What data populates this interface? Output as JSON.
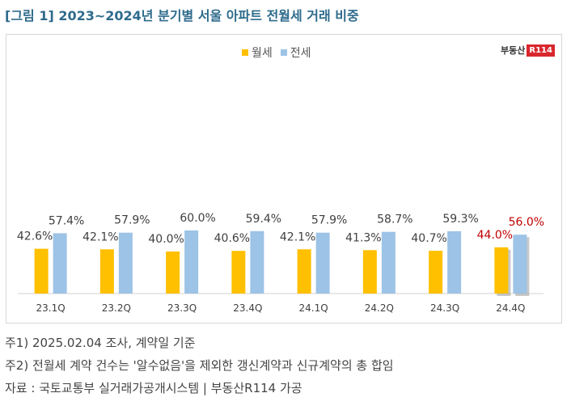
{
  "figure_title": "[그림 1] 2023~2024년 분기별 서울 아파트 전월세 거래 비중",
  "logo": {
    "text": "부동산",
    "box": "R114"
  },
  "notes": [
    "주1) 2025.02.04 조사, 계약일 기준",
    "주2) 전월세 계약 건수는 '알수없음'을 제외한 갱신계약과 신규계약의 총 합임",
    "자료 : 국토교통부 실거래가공개시스템 | 부동산R114 가공"
  ],
  "chart_data": {
    "type": "bar",
    "title": "",
    "xlabel": "",
    "ylabel": "",
    "ylim": [
      0,
      100
    ],
    "grid": false,
    "legend_position": "top-center",
    "categories": [
      "23.1Q",
      "23.2Q",
      "23.3Q",
      "23.4Q",
      "24.1Q",
      "24.2Q",
      "24.3Q",
      "24.4Q"
    ],
    "series": [
      {
        "name": "월세",
        "color": "#FFC000",
        "values": [
          42.6,
          42.1,
          40.0,
          40.6,
          42.1,
          41.3,
          40.7,
          44.0
        ],
        "labels": [
          "42.6%",
          "42.1%",
          "40.0%",
          "40.6%",
          "42.1%",
          "41.3%",
          "40.7%",
          "44.0%"
        ]
      },
      {
        "name": "전세",
        "color": "#9DC3E6",
        "values": [
          57.4,
          57.9,
          60.0,
          59.4,
          57.9,
          58.7,
          59.3,
          56.0
        ],
        "labels": [
          "57.4%",
          "57.9%",
          "60.0%",
          "59.4%",
          "57.9%",
          "58.7%",
          "59.3%",
          "56.0%"
        ]
      }
    ],
    "highlight_category_index": 7,
    "highlight_label_color": "#C00000"
  }
}
